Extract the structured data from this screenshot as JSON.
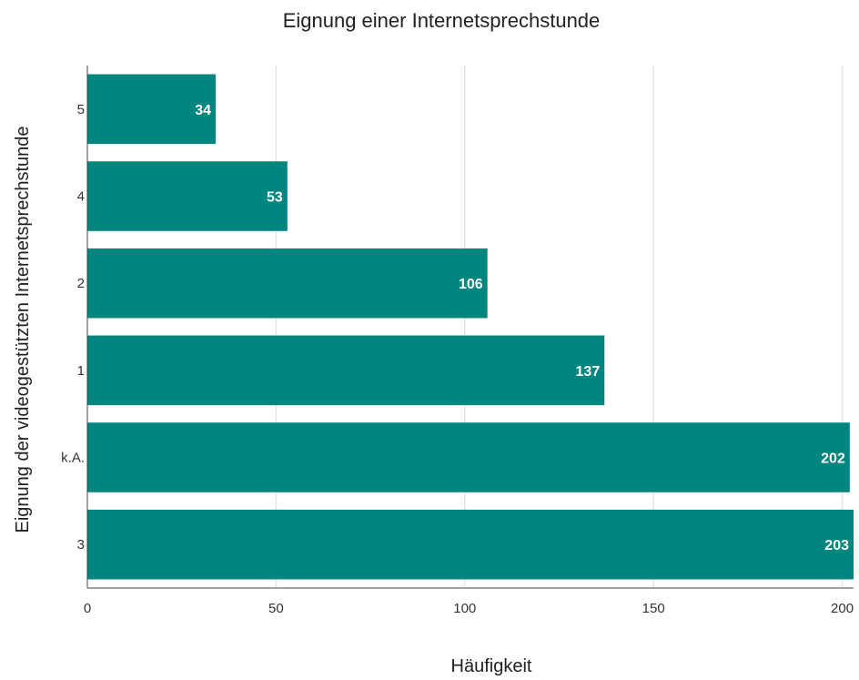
{
  "chart_data": {
    "type": "bar",
    "orientation": "horizontal",
    "title": "Eignung einer Internetsprechstunde",
    "xlabel": "Häufigkeit",
    "ylabel": "Eignung der videogestützten Internetsprechstunde",
    "categories": [
      "5",
      "4",
      "2",
      "1",
      "k.A.",
      "3"
    ],
    "values": [
      34,
      53,
      106,
      137,
      202,
      203
    ],
    "xlim": [
      0,
      203
    ],
    "xticks": [
      0,
      50,
      100,
      150,
      200
    ],
    "grid": true,
    "bar_color": "#00857f",
    "data_labels": true
  }
}
